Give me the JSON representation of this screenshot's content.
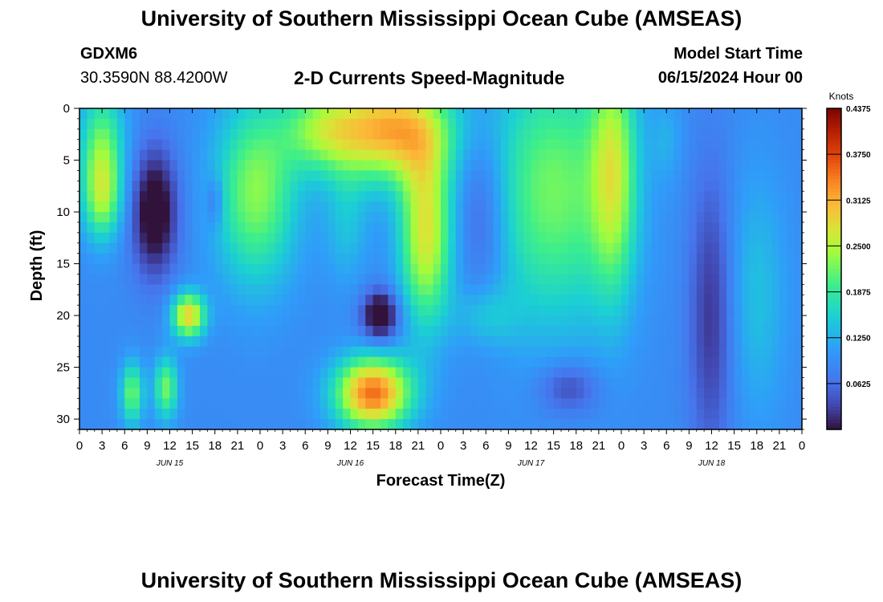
{
  "header": {
    "title": "University of Southern Mississippi Ocean Cube (AMSEAS)",
    "station_id": "GDXM6",
    "station_coords": "30.3590N  88.4200W",
    "subtitle": "2-D Currents Speed-Magnitude",
    "start_label": "Model Start Time",
    "start_value": "06/15/2024 Hour 00"
  },
  "footer": {
    "title": "University of Southern Mississippi Ocean Cube (AMSEAS)"
  },
  "chart_data": {
    "type": "heatmap",
    "title": "2-D Currents Speed-Magnitude",
    "xlabel": "Forecast Time(Z)",
    "ylabel": "Depth (ft)",
    "x_range_hours": [
      0,
      96
    ],
    "y_range_ft": [
      0,
      31
    ],
    "x_tick_labels": [
      "0",
      "3",
      "6",
      "9",
      "12",
      "15",
      "18",
      "21",
      "0",
      "3",
      "6",
      "9",
      "12",
      "15",
      "18",
      "21",
      "0",
      "3",
      "6",
      "9",
      "12",
      "15",
      "18",
      "21",
      "0",
      "3",
      "6",
      "9",
      "12",
      "15",
      "18",
      "21",
      "0"
    ],
    "y_ticks": [
      0,
      5,
      10,
      15,
      20,
      25,
      30
    ],
    "date_labels": [
      {
        "label": "JUN 15",
        "hour": 12
      },
      {
        "label": "JUN 16",
        "hour": 36
      },
      {
        "label": "JUN 17",
        "hour": 60
      },
      {
        "label": "JUN 18",
        "hour": 84
      }
    ],
    "colorbar": {
      "unit": "Knots",
      "min": 0.0,
      "max": 0.4375,
      "ticks": [
        "0.4375",
        "0.3750",
        "0.3125",
        "0.2500",
        "0.1875",
        "0.1250",
        "0.0625"
      ],
      "tick_values": [
        0.4375,
        0.375,
        0.3125,
        0.25,
        0.1875,
        0.125,
        0.0625
      ]
    },
    "features": [
      {
        "x": 3,
        "y": 4,
        "sx": 3,
        "sy": 6,
        "v": 0.13
      },
      {
        "x": 3,
        "y": 9,
        "sx": 2.5,
        "sy": 4,
        "v": 0.1
      },
      {
        "x": 10,
        "y": 10,
        "sx": 3,
        "sy": 6,
        "v": -0.12
      },
      {
        "x": 18,
        "y": 9,
        "sx": 1.1,
        "sy": 2.5,
        "v": -0.05
      },
      {
        "x": 14.5,
        "y": 20,
        "sx": 2.2,
        "sy": 2.2,
        "v": 0.2
      },
      {
        "x": 11.5,
        "y": 27,
        "sx": 1.6,
        "sy": 3,
        "v": 0.13
      },
      {
        "x": 7,
        "y": 27.5,
        "sx": 1.5,
        "sy": 3,
        "v": 0.13
      },
      {
        "x": 23.5,
        "y": 8,
        "sx": 5.5,
        "sy": 9,
        "v": 0.14
      },
      {
        "x": 32,
        "y": 2,
        "sx": 5,
        "sy": 4,
        "v": 0.1
      },
      {
        "x": 41,
        "y": 2,
        "sx": 8,
        "sy": 5,
        "v": 0.22
      },
      {
        "x": 46,
        "y": 12,
        "sx": 3.5,
        "sy": 9,
        "v": 0.18
      },
      {
        "x": 35.5,
        "y": 11,
        "sx": 3,
        "sy": 6,
        "v": 0.05
      },
      {
        "x": 40,
        "y": 20,
        "sx": 2.5,
        "sy": 2.5,
        "v": -0.12
      },
      {
        "x": 40,
        "y": 20,
        "sx": 1,
        "sy": 1,
        "v": -0.06
      },
      {
        "x": 39,
        "y": 27.5,
        "sx": 5,
        "sy": 3.5,
        "v": 0.26
      },
      {
        "x": 53.5,
        "y": 10,
        "sx": 3.5,
        "sy": 9,
        "v": -0.06
      },
      {
        "x": 54,
        "y": 20,
        "sx": 4,
        "sy": 3,
        "v": 0.05
      },
      {
        "x": 63,
        "y": 8,
        "sx": 9,
        "sy": 13,
        "v": 0.13
      },
      {
        "x": 65,
        "y": 27,
        "sx": 4,
        "sy": 2.5,
        "v": -0.06
      },
      {
        "x": 71,
        "y": 6,
        "sx": 3,
        "sy": 12,
        "v": 0.13
      },
      {
        "x": 78,
        "y": 3,
        "sx": 2,
        "sy": 4,
        "v": 0.03
      },
      {
        "x": 84,
        "y": 20,
        "sx": 3,
        "sy": 14,
        "v": -0.07
      },
      {
        "x": 90,
        "y": 18,
        "sx": 4,
        "sy": 12,
        "v": 0.05
      }
    ]
  }
}
